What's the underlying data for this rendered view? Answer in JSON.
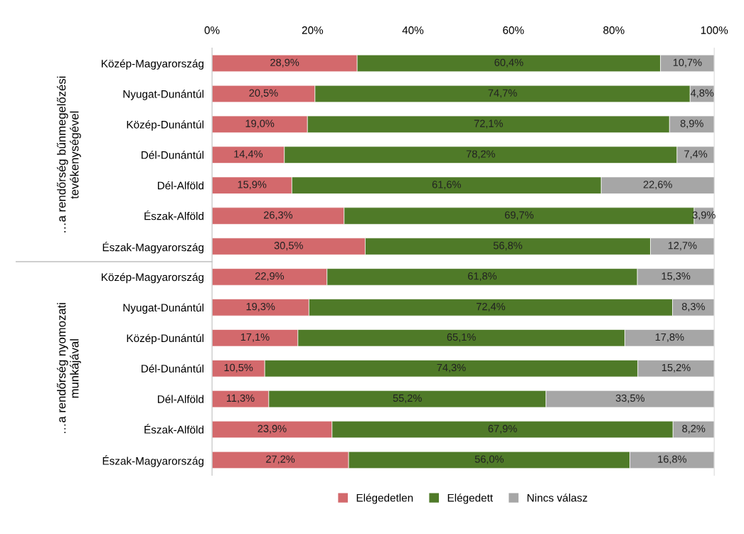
{
  "chart_data": {
    "type": "bar",
    "orientation": "horizontal",
    "stacked": true,
    "categories": [
      "Közép-Magyarország",
      "Nyugat-Dunántúl",
      "Közép-Dunántúl",
      "Dél-Dunántúl",
      "Dél-Alföld",
      "Észak-Alföld",
      "Észak-Magyarország",
      "Közép-Magyarország",
      "Nyugat-Dunántúl",
      "Közép-Dunántúl",
      "Dél-Dunántúl",
      "Dél-Alföld",
      "Észak-Alföld",
      "Észak-Magyarország"
    ],
    "series": [
      {
        "name": "Elégedetlen",
        "color": "#d3696c",
        "values": [
          28.9,
          20.5,
          19.0,
          14.4,
          15.9,
          26.3,
          30.5,
          22.9,
          19.3,
          17.1,
          10.5,
          11.3,
          23.9,
          27.2
        ],
        "value_labels": [
          "28,9%",
          "20,5%",
          "19,0%",
          "14,4%",
          "15,9%",
          "26,3%",
          "30,5%",
          "22,9%",
          "19,3%",
          "17,1%",
          "10,5%",
          "11,3%",
          "23,9%",
          "27,2%"
        ]
      },
      {
        "name": "Elégedett",
        "color": "#4f7a28",
        "values": [
          60.4,
          74.7,
          72.1,
          78.2,
          61.6,
          69.7,
          56.8,
          61.8,
          72.4,
          65.1,
          74.3,
          55.2,
          67.9,
          56.0
        ],
        "value_labels": [
          "60,4%",
          "74,7%",
          "72,1%",
          "78,2%",
          "61,6%",
          "69,7%",
          "56,8%",
          "61,8%",
          "72,4%",
          "65,1%",
          "74,3%",
          "55,2%",
          "67,9%",
          "56,0%"
        ]
      },
      {
        "name": "Nincs válasz",
        "color": "#a6a6a6",
        "values": [
          10.7,
          4.8,
          8.9,
          7.4,
          22.6,
          3.9,
          12.7,
          15.3,
          8.3,
          17.8,
          15.2,
          33.5,
          8.2,
          16.8
        ],
        "value_labels": [
          "10,7%",
          "4,8%",
          "8,9%",
          "7,4%",
          "22,6%",
          "3,9%",
          "12,7%",
          "15,3%",
          "8,3%",
          "17,8%",
          "15,2%",
          "33,5%",
          "8,2%",
          "16,8%"
        ]
      }
    ],
    "xlim": [
      0,
      100
    ],
    "xticks": [
      {
        "value": 0,
        "label": "0%"
      },
      {
        "value": 20,
        "label": "20%"
      },
      {
        "value": 40,
        "label": "40%"
      },
      {
        "value": 60,
        "label": "60%"
      },
      {
        "value": 80,
        "label": "80%"
      },
      {
        "value": 100,
        "label": "100%"
      }
    ],
    "annotations": [
      "…a rendőrség bűnmegelőzési\ntevékenységével",
      "…a rendőrség nyomozati\nmunkájával"
    ],
    "grid": false,
    "legend": "bottom"
  }
}
